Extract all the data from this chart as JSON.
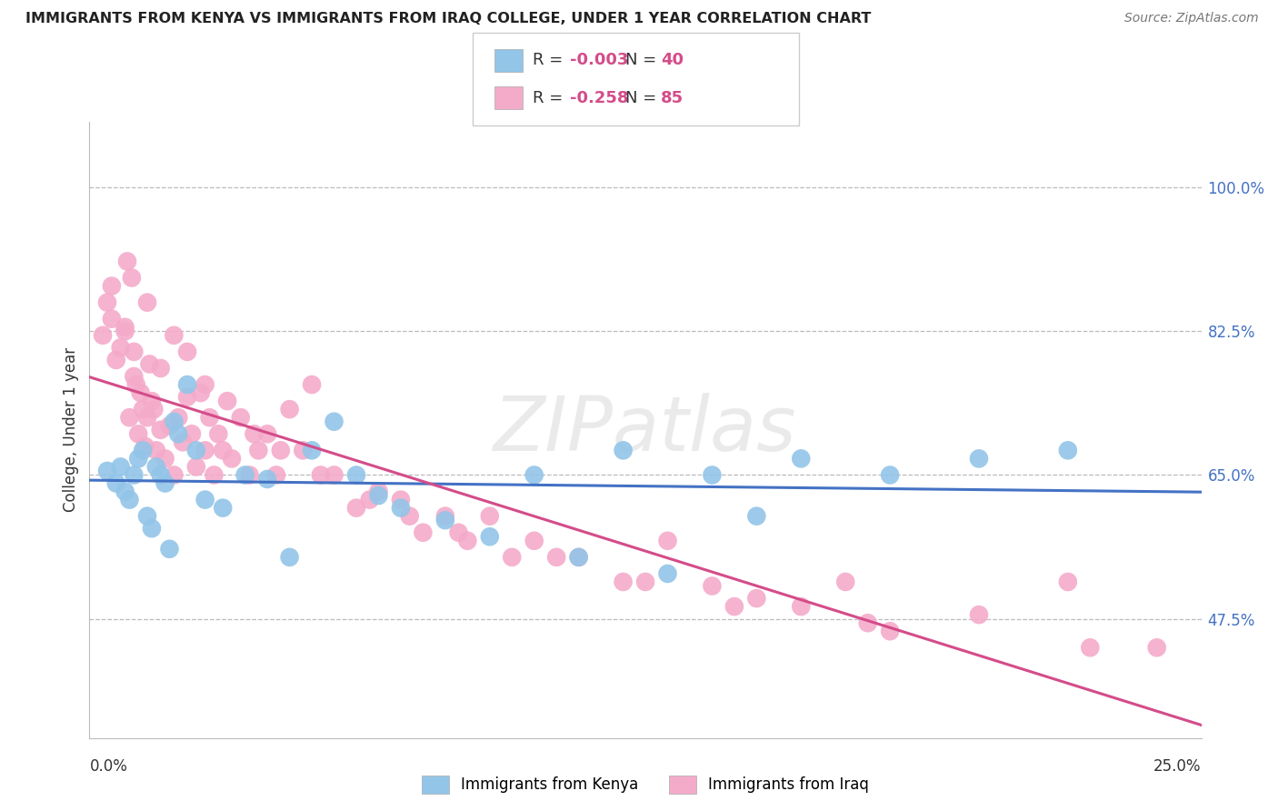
{
  "title": "IMMIGRANTS FROM KENYA VS IMMIGRANTS FROM IRAQ COLLEGE, UNDER 1 YEAR CORRELATION CHART",
  "source": "Source: ZipAtlas.com",
  "ylabel": "College, Under 1 year",
  "yticks": [
    47.5,
    65.0,
    82.5,
    100.0
  ],
  "ytick_labels": [
    "47.5%",
    "65.0%",
    "82.5%",
    "100.0%"
  ],
  "xmin": 0.0,
  "xmax": 25.0,
  "ymin": 33.0,
  "ymax": 108.0,
  "r_kenya": -0.003,
  "n_kenya": 40,
  "r_iraq": -0.258,
  "n_iraq": 85,
  "color_kenya": "#92C5E8",
  "color_iraq": "#F4ABCA",
  "line_color_kenya": "#4472C4",
  "line_color_iraq": "#D44C8A",
  "watermark": "ZIPatlas",
  "kenya_x": [
    0.4,
    0.6,
    0.7,
    0.8,
    0.9,
    1.0,
    1.1,
    1.2,
    1.3,
    1.4,
    1.5,
    1.6,
    1.7,
    1.8,
    1.9,
    2.0,
    2.2,
    2.4,
    2.6,
    3.0,
    3.5,
    4.0,
    4.5,
    5.0,
    5.5,
    6.0,
    6.5,
    7.0,
    8.0,
    9.0,
    10.0,
    11.0,
    12.0,
    13.0,
    14.0,
    15.0,
    16.0,
    18.0,
    20.0,
    22.0
  ],
  "kenya_y": [
    65.5,
    64.0,
    66.0,
    63.0,
    62.0,
    65.0,
    67.0,
    68.0,
    60.0,
    58.5,
    66.0,
    65.0,
    64.0,
    56.0,
    71.5,
    70.0,
    76.0,
    68.0,
    62.0,
    61.0,
    65.0,
    64.5,
    55.0,
    68.0,
    71.5,
    65.0,
    62.5,
    61.0,
    59.5,
    57.5,
    65.0,
    55.0,
    68.0,
    53.0,
    65.0,
    60.0,
    67.0,
    65.0,
    67.0,
    68.0
  ],
  "iraq_x": [
    0.3,
    0.4,
    0.5,
    0.6,
    0.7,
    0.8,
    0.85,
    0.9,
    0.95,
    1.0,
    1.05,
    1.1,
    1.15,
    1.2,
    1.25,
    1.3,
    1.35,
    1.4,
    1.45,
    1.5,
    1.6,
    1.7,
    1.8,
    1.9,
    2.0,
    2.1,
    2.2,
    2.3,
    2.4,
    2.5,
    2.6,
    2.7,
    2.8,
    2.9,
    3.0,
    3.2,
    3.4,
    3.6,
    3.8,
    4.0,
    4.2,
    4.5,
    4.8,
    5.0,
    5.5,
    6.0,
    6.5,
    7.0,
    7.5,
    8.0,
    8.5,
    9.0,
    9.5,
    10.0,
    11.0,
    12.0,
    13.0,
    14.0,
    15.0,
    16.0,
    17.0,
    18.0,
    20.0,
    22.0,
    24.0,
    0.5,
    0.8,
    1.0,
    1.3,
    1.6,
    1.9,
    2.2,
    2.6,
    3.1,
    3.7,
    4.3,
    5.2,
    6.3,
    7.2,
    8.3,
    10.5,
    12.5,
    14.5,
    17.5,
    22.5
  ],
  "iraq_y": [
    82.0,
    86.0,
    84.0,
    79.0,
    80.5,
    83.0,
    91.0,
    72.0,
    89.0,
    77.0,
    76.0,
    70.0,
    75.0,
    73.0,
    68.5,
    72.0,
    78.5,
    74.0,
    73.0,
    68.0,
    70.5,
    67.0,
    71.0,
    65.0,
    72.0,
    69.0,
    74.5,
    70.0,
    66.0,
    75.0,
    68.0,
    72.0,
    65.0,
    70.0,
    68.0,
    67.0,
    72.0,
    65.0,
    68.0,
    70.0,
    65.0,
    73.0,
    68.0,
    76.0,
    65.0,
    61.0,
    63.0,
    62.0,
    58.0,
    60.0,
    57.0,
    60.0,
    55.0,
    57.0,
    55.0,
    52.0,
    57.0,
    51.5,
    50.0,
    49.0,
    52.0,
    46.0,
    48.0,
    52.0,
    44.0,
    88.0,
    82.5,
    80.0,
    86.0,
    78.0,
    82.0,
    80.0,
    76.0,
    74.0,
    70.0,
    68.0,
    65.0,
    62.0,
    60.0,
    58.0,
    55.0,
    52.0,
    49.0,
    47.0,
    44.0
  ]
}
